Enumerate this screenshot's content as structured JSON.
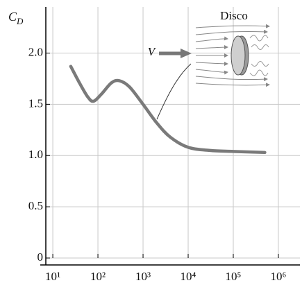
{
  "chart_data": {
    "type": "line",
    "y_label": "C",
    "y_label_subscript": "D",
    "inset_label": "Disco",
    "velocity_label": "V",
    "x": [
      25,
      40,
      60,
      80,
      120,
      200,
      300,
      500,
      1000,
      2000,
      4000,
      10000,
      30000,
      100000,
      500000
    ],
    "values": [
      1.87,
      1.7,
      1.57,
      1.53,
      1.6,
      1.71,
      1.73,
      1.67,
      1.5,
      1.32,
      1.18,
      1.08,
      1.05,
      1.04,
      1.03
    ],
    "color": "#7a7a7a",
    "xscale": "log",
    "xlim": [
      7,
      3000000
    ],
    "xticks": [
      {
        "value": 10,
        "label": "10¹"
      },
      {
        "value": 100,
        "label": "10²"
      },
      {
        "value": 1000,
        "label": "10³"
      },
      {
        "value": 10000,
        "label": "10⁴"
      },
      {
        "value": 100000,
        "label": "10⁵"
      },
      {
        "value": 1000000,
        "label": "10⁶"
      }
    ],
    "ylim": [
      0,
      2.45
    ],
    "yticks": [
      {
        "value": 0,
        "label": "0"
      },
      {
        "value": 0.5,
        "label": "0.5"
      },
      {
        "value": 1,
        "label": "1.0"
      },
      {
        "value": 1.5,
        "label": "1.5"
      },
      {
        "value": 2,
        "label": "2.0"
      }
    ],
    "grid": true
  }
}
